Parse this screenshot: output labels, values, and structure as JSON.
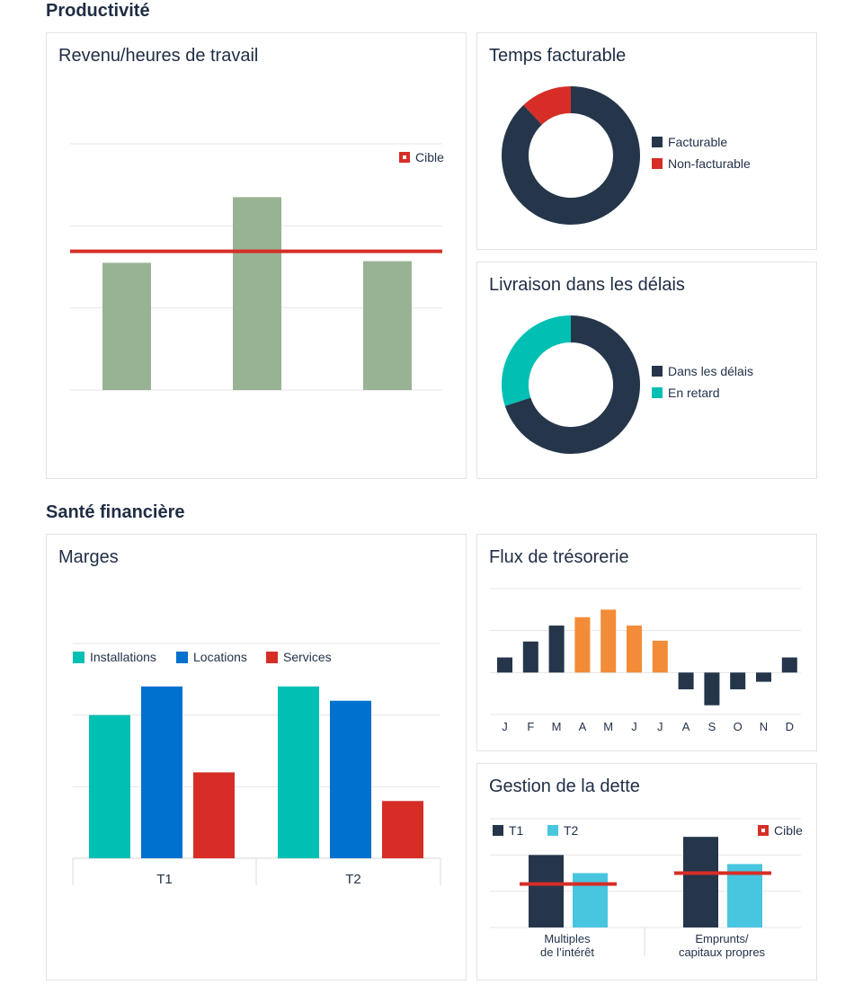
{
  "sections": {
    "productivite": "Productivité",
    "sante": "Santé financière"
  },
  "colors": {
    "navy": "#25364b",
    "red": "#d62e27",
    "green": "#98b394",
    "teal": "#00bfb3",
    "blue": "#0071ce",
    "orange": "#f28c38",
    "lightblue": "#48c6e0",
    "grid": "#e6e6e6"
  },
  "chart_data": [
    {
      "id": "revenu",
      "type": "bar",
      "title": "Revenu/heures de travail",
      "categories": [
        "",
        "",
        ""
      ],
      "values": [
        155,
        235,
        157
      ],
      "target": 169,
      "target_label": "Cible",
      "ylim": [
        0,
        300
      ],
      "grid": true,
      "legend": "top-right"
    },
    {
      "id": "temps",
      "type": "pie",
      "donut": true,
      "title": "Temps facturable",
      "labels": [
        "Facturable",
        "Non-facturable"
      ],
      "values": [
        88,
        12
      ],
      "legend": "right"
    },
    {
      "id": "livraison",
      "type": "pie",
      "donut": true,
      "title": "Livraison dans les délais",
      "labels": [
        "Dans les délais",
        "En retard"
      ],
      "values": [
        70,
        30
      ],
      "legend": "right"
    },
    {
      "id": "marges",
      "type": "bar",
      "title": "Marges",
      "categories": [
        "T1",
        "T2"
      ],
      "series": [
        {
          "name": "Installations",
          "values": [
            200,
            240
          ]
        },
        {
          "name": "Locations",
          "values": [
            240,
            220
          ]
        },
        {
          "name": "Services",
          "values": [
            120,
            80
          ]
        }
      ],
      "ylim": [
        0,
        300
      ],
      "grid": true,
      "legend": "top-left"
    },
    {
      "id": "flux",
      "type": "bar",
      "title": "Flux de trésorerie",
      "categories": [
        "J",
        "F",
        "M",
        "A",
        "M",
        "J",
        "J",
        "A",
        "S",
        "O",
        "N",
        "D"
      ],
      "values": [
        18,
        37,
        56,
        66,
        75,
        56,
        38,
        -20,
        -39,
        -20,
        -11,
        18
      ],
      "highlight_indices": [
        3,
        4,
        5,
        6
      ],
      "ylim": [
        -50,
        100
      ],
      "grid": true
    },
    {
      "id": "dette",
      "type": "bar",
      "title": "Gestion de la dette",
      "categories": [
        "Multiples\nde l’intérêt",
        "Emprunts/\ncapitaux propres"
      ],
      "series": [
        {
          "name": "T1",
          "values": [
            80,
            100
          ]
        },
        {
          "name": "T2",
          "values": [
            60,
            70
          ]
        }
      ],
      "targets": [
        48,
        60
      ],
      "target_label": "Cible",
      "ylim": [
        0,
        120
      ],
      "grid": true,
      "legend": "top"
    }
  ]
}
